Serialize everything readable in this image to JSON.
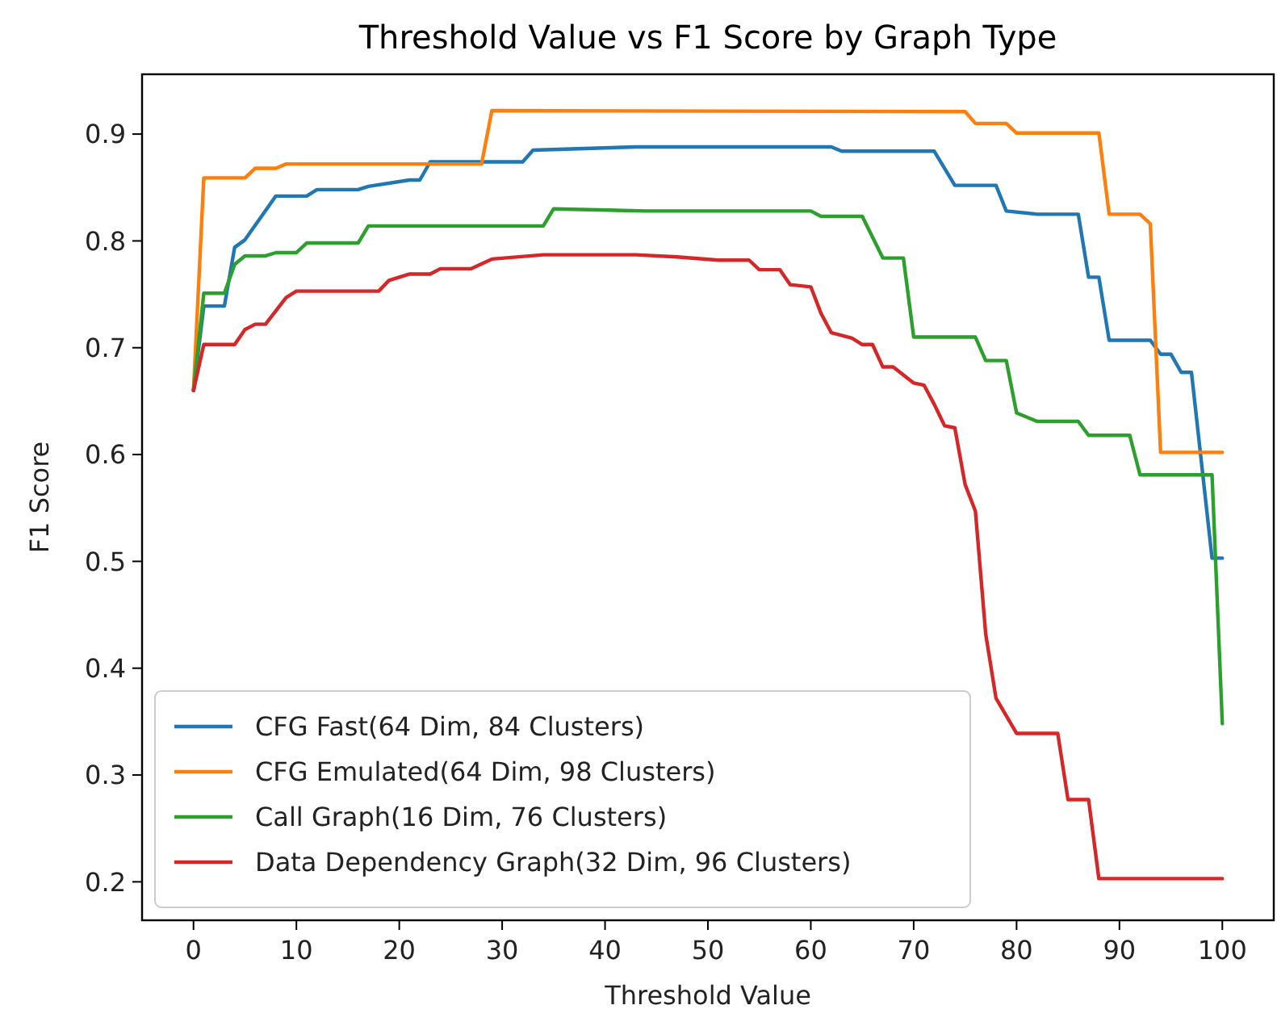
{
  "chart_data": {
    "type": "line",
    "title": "Threshold Value vs F1 Score by Graph Type",
    "xlabel": "Threshold Value",
    "ylabel": "F1 Score",
    "xlim": [
      -5,
      105
    ],
    "ylim": [
      0.164,
      0.956
    ],
    "xticks": [
      0,
      10,
      20,
      30,
      40,
      50,
      60,
      70,
      80,
      90,
      100
    ],
    "yticks": [
      0.2,
      0.3,
      0.4,
      0.5,
      0.6,
      0.7,
      0.8,
      0.9
    ],
    "grid": false,
    "legend": "bottom left",
    "line_style": "solid",
    "marker": "none",
    "series": [
      {
        "name": "CFG Fast(64 Dim, 84 Clusters)",
        "color": "#1f77b4",
        "x": [
          0,
          1,
          3,
          4,
          5,
          8,
          11,
          12,
          16,
          17,
          21,
          22,
          23,
          32,
          33,
          43,
          62,
          63,
          72,
          74,
          78,
          79,
          82,
          86,
          87,
          88,
          89,
          93,
          94,
          95,
          96,
          97,
          99,
          100
        ],
        "values": [
          0.66,
          0.739,
          0.739,
          0.794,
          0.801,
          0.842,
          0.842,
          0.848,
          0.848,
          0.851,
          0.857,
          0.857,
          0.874,
          0.874,
          0.885,
          0.888,
          0.888,
          0.884,
          0.884,
          0.852,
          0.852,
          0.828,
          0.825,
          0.825,
          0.766,
          0.766,
          0.707,
          0.707,
          0.694,
          0.694,
          0.677,
          0.677,
          0.503,
          0.503
        ]
      },
      {
        "name": "CFG Emulated(64 Dim, 98 Clusters)",
        "color": "#ff7f0e",
        "x": [
          0,
          1,
          5,
          6,
          8,
          9,
          28,
          29,
          75,
          76,
          79,
          80,
          88,
          89,
          92,
          93,
          94,
          100
        ],
        "values": [
          0.66,
          0.859,
          0.859,
          0.868,
          0.868,
          0.872,
          0.872,
          0.922,
          0.921,
          0.91,
          0.91,
          0.901,
          0.901,
          0.825,
          0.825,
          0.816,
          0.602,
          0.602
        ]
      },
      {
        "name": "Call Graph(16 Dim, 76 Clusters)",
        "color": "#2ca02c",
        "x": [
          0,
          1,
          3,
          4,
          5,
          7,
          8,
          10,
          11,
          16,
          17,
          34,
          35,
          44,
          60,
          61,
          65,
          67,
          69,
          70,
          76,
          77,
          79,
          80,
          82,
          86,
          87,
          91,
          92,
          99,
          100
        ],
        "values": [
          0.66,
          0.751,
          0.751,
          0.778,
          0.786,
          0.786,
          0.789,
          0.789,
          0.798,
          0.798,
          0.814,
          0.814,
          0.83,
          0.828,
          0.828,
          0.823,
          0.823,
          0.784,
          0.784,
          0.71,
          0.71,
          0.688,
          0.688,
          0.639,
          0.631,
          0.631,
          0.618,
          0.618,
          0.581,
          0.581,
          0.348
        ]
      },
      {
        "name": "Data Dependency Graph(32 Dim, 96 Clusters)",
        "color": "#d62728",
        "x": [
          0,
          1,
          4,
          5,
          6,
          7,
          9,
          10,
          18,
          19,
          21,
          23,
          24,
          27,
          29,
          34,
          43,
          47,
          51,
          54,
          55,
          57,
          58,
          60,
          61,
          62,
          64,
          65,
          66,
          67,
          68,
          70,
          71,
          72,
          73,
          74,
          75,
          76,
          77,
          78,
          80,
          84,
          85,
          87,
          88,
          100
        ],
        "values": [
          0.66,
          0.703,
          0.703,
          0.717,
          0.722,
          0.722,
          0.747,
          0.753,
          0.753,
          0.763,
          0.769,
          0.769,
          0.774,
          0.774,
          0.783,
          0.787,
          0.787,
          0.785,
          0.782,
          0.782,
          0.773,
          0.773,
          0.759,
          0.757,
          0.732,
          0.714,
          0.709,
          0.703,
          0.703,
          0.682,
          0.682,
          0.667,
          0.665,
          0.647,
          0.627,
          0.625,
          0.572,
          0.547,
          0.432,
          0.372,
          0.339,
          0.339,
          0.277,
          0.277,
          0.203,
          0.203
        ]
      }
    ]
  }
}
